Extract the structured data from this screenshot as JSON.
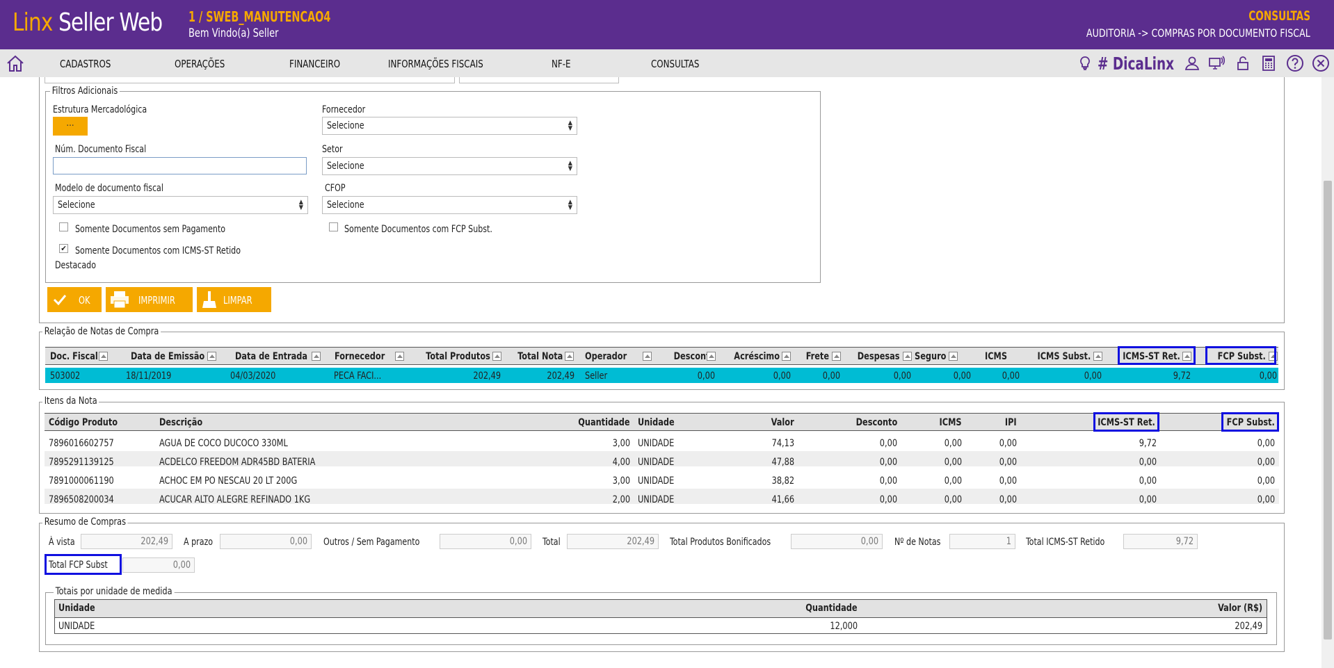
{
  "header": {
    "logo_linx": "Linx",
    "logo_rest": " Seller Web",
    "company": "1 / SWEB_MANUTENCAO4",
    "welcome": "Bem Vindo(a) Seller",
    "module": "CONSULTAS",
    "breadcrumb": "AUDITORIA -> COMPRAS POR DOCUMENTO FISCAL"
  },
  "menu": {
    "items": [
      "CADASTROS",
      "OPERAÇÕES",
      "FINANCEIRO",
      "INFORMAÇÕES FISCAIS",
      "NF-E",
      "CONSULTAS"
    ],
    "dica": "# DicaLinx",
    "icons": [
      "home-icon",
      "lightbulb-icon",
      "user-icon",
      "remote-support-icon",
      "lock-icon",
      "calculator-icon",
      "help-icon",
      "close-icon"
    ]
  },
  "filters": {
    "legend": "Filtros Adicionais",
    "estrutura_label": "Estrutura Mercadológica",
    "estrutura_btn": "...",
    "fornecedor_label": "Fornecedor",
    "fornecedor_value": "Selecione",
    "num_doc_label": "Núm. Documento Fiscal",
    "num_doc_value": "",
    "setor_label": "Setor",
    "setor_value": "Selecione",
    "modelo_label": "Modelo de documento fiscal",
    "modelo_value": "Selecione",
    "cfop_label": "CFOP",
    "cfop_value": "Selecione",
    "chk_sem_pagamento": "Somente Documentos sem Pagamento",
    "chk_sem_pagamento_checked": false,
    "chk_fcp": "Somente Documentos com FCP Subst.",
    "chk_fcp_checked": false,
    "chk_icms_line1": "Somente Documentos com ICMS-ST Retido",
    "chk_icms_line2": "Destacado",
    "chk_icms_checked": true
  },
  "actions": {
    "ok": "OK",
    "imprimir": "IMPRIMIR",
    "limpar": "LIMPAR"
  },
  "notas": {
    "legend": "Relação de Notas de Compra",
    "headers": [
      "Doc. Fiscal",
      "Data de Emissão",
      "Data de Entrada",
      "Fornecedor",
      "Total Produtos",
      "Total Nota",
      "Operador",
      "Desconto",
      "Acréscimo",
      "Frete",
      "Despesas",
      "Seguro",
      "ICMS",
      "ICMS Subst.",
      "ICMS-ST Ret.",
      "FCP Subst."
    ],
    "rows": [
      [
        "503002",
        "18/11/2019",
        "04/03/2020",
        "PECA FACI...",
        "202,49",
        "202,49",
        "Seller",
        "0,00",
        "0,00",
        "0,00",
        "0,00",
        "0,00",
        "0,00",
        "0,00",
        "9,72",
        "0,00"
      ]
    ]
  },
  "itens": {
    "legend": "Itens da Nota",
    "headers": [
      "Código Produto",
      "Descrição",
      "Quantidade",
      "Unidade",
      "Valor",
      "Desconto",
      "ICMS",
      "IPI",
      "ICMS-ST Ret.",
      "FCP Subst."
    ],
    "rows": [
      [
        "7896016602757",
        "AGUA DE COCO DUCOCO 330ML",
        "3,00",
        "UNIDADE",
        "74,13",
        "0,00",
        "0,00",
        "0,00",
        "9,72",
        "0,00"
      ],
      [
        "7895291139125",
        "ACDELCO FREEDOM ADR45BD BATERIA",
        "4,00",
        "UNIDADE",
        "47,88",
        "0,00",
        "0,00",
        "0,00",
        "0,00",
        "0,00"
      ],
      [
        "7891000061190",
        "ACHOC EM PO NESCAU 20 LT 200G",
        "3,00",
        "UNIDADE",
        "38,82",
        "0,00",
        "0,00",
        "0,00",
        "0,00",
        "0,00"
      ],
      [
        "7896508200034",
        "ACUCAR ALTO ALEGRE REFINADO 1KG",
        "2,00",
        "UNIDADE",
        "41,66",
        "0,00",
        "0,00",
        "0,00",
        "0,00",
        "0,00"
      ]
    ]
  },
  "resumo": {
    "legend": "Resumo de Compras",
    "a_vista_label": "À vista",
    "a_vista": "202,49",
    "a_prazo_label": "A prazo",
    "a_prazo": "0,00",
    "outros_label": "Outros / Sem Pagamento",
    "outros": "0,00",
    "total_label": "Total",
    "total": "202,49",
    "bonif_label": "Total Produtos Bonificados",
    "bonif": "0,00",
    "notas_label": "Nº de Notas",
    "notas": "1",
    "icms_st_label": "Total ICMS-ST Retido",
    "icms_st": "9,72",
    "fcp_label": "Total FCP Subst",
    "fcp": "0,00"
  },
  "unidades": {
    "legend": "Totais por unidade de medida",
    "headers": [
      "Unidade",
      "Quantidade",
      "Valor (R$)"
    ],
    "rows": [
      [
        "UNIDADE",
        "12,000",
        "202,49"
      ]
    ]
  },
  "colors": {
    "purple": "#5b2d8e",
    "orange": "#f5a800",
    "selected_row": "#00bcd4",
    "highlight": "#1010e0"
  }
}
